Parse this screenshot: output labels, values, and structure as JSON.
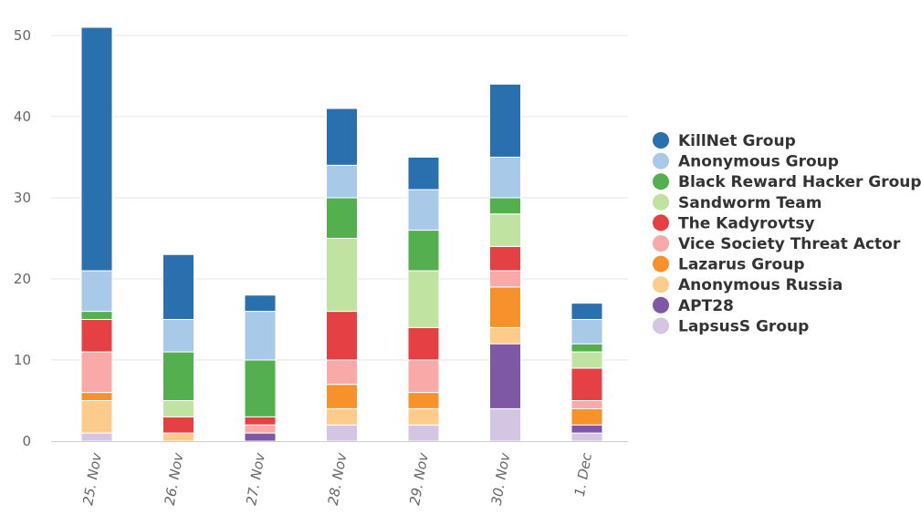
{
  "chart_data": {
    "type": "bar",
    "stacked": true,
    "title": "",
    "xlabel": "",
    "ylabel": "",
    "categories": [
      "25. Nov",
      "26. Nov",
      "27. Nov",
      "28. Nov",
      "29. Nov",
      "30. Nov",
      "1. Dec"
    ],
    "ylim": [
      0,
      51
    ],
    "yticks": [
      0,
      10,
      20,
      30,
      40,
      50
    ],
    "grid": true,
    "legend_position": "right",
    "series": [
      {
        "name": "LapsusS Group",
        "color": "#d4c5e2",
        "values": [
          1,
          0,
          0,
          2,
          2,
          4,
          1
        ]
      },
      {
        "name": "APT28",
        "color": "#7e57a5",
        "values": [
          0,
          0,
          1,
          0,
          0,
          8,
          1
        ]
      },
      {
        "name": "Anonymous Russia",
        "color": "#fdcb8c",
        "values": [
          4,
          1,
          0,
          2,
          2,
          2,
          0
        ]
      },
      {
        "name": "Lazarus Group",
        "color": "#f7922b",
        "values": [
          1,
          0,
          0,
          3,
          2,
          5,
          2
        ]
      },
      {
        "name": "Vice Society Threat Actor",
        "color": "#f9aaa8",
        "values": [
          5,
          0,
          1,
          3,
          4,
          2,
          1
        ]
      },
      {
        "name": "The Kadyrovtsy",
        "color": "#e54145",
        "values": [
          4,
          2,
          1,
          6,
          4,
          3,
          4
        ]
      },
      {
        "name": "Sandworm Team",
        "color": "#c0e3a2",
        "values": [
          0,
          2,
          0,
          9,
          7,
          4,
          2
        ]
      },
      {
        "name": "Black Reward Hacker Group",
        "color": "#54b04f",
        "values": [
          1,
          6,
          7,
          5,
          5,
          2,
          1
        ]
      },
      {
        "name": "Anonymous Group",
        "color": "#a8c9e7",
        "values": [
          5,
          4,
          6,
          4,
          5,
          5,
          3
        ]
      },
      {
        "name": "KillNet Group",
        "color": "#2a6fae",
        "values": [
          30,
          8,
          2,
          7,
          4,
          9,
          2
        ]
      }
    ],
    "legend_order": [
      "KillNet Group",
      "Anonymous Group",
      "Black Reward Hacker Group",
      "Sandworm Team",
      "The Kadyrovtsy",
      "Vice Society Threat Actor",
      "Lazarus Group",
      "Anonymous Russia",
      "APT28",
      "LapsusS Group"
    ]
  }
}
